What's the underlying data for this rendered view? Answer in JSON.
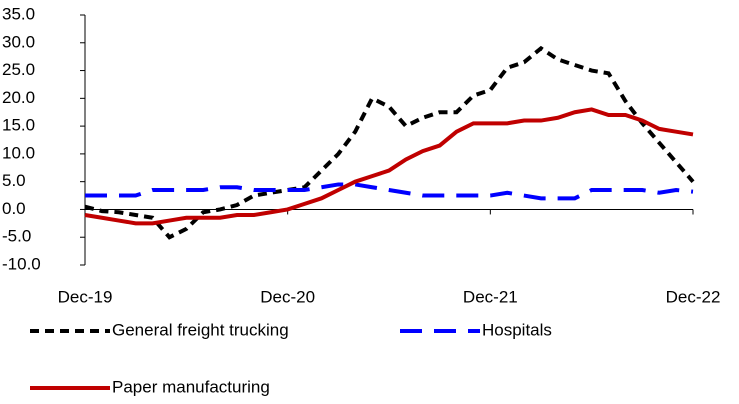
{
  "chart_data": {
    "type": "line",
    "categories": [
      "Dec-19",
      null,
      null,
      null,
      null,
      null,
      null,
      null,
      null,
      null,
      null,
      null,
      "Dec-20",
      null,
      null,
      null,
      null,
      null,
      null,
      null,
      null,
      null,
      null,
      null,
      "Dec-21",
      null,
      null,
      null,
      null,
      null,
      null,
      null,
      null,
      null,
      null,
      null,
      "Dec-22"
    ],
    "series": [
      {
        "name": "General freight trucking",
        "color": "#000000",
        "style": "dashed",
        "values": [
          0.5,
          -0.3,
          -0.5,
          -1,
          -1.5,
          -5,
          -3.5,
          -0.5,
          0,
          0.8,
          2.5,
          3,
          3.5,
          4,
          7,
          10,
          14,
          20,
          18.5,
          15,
          16.5,
          17.5,
          17.5,
          20.5,
          21.5,
          25.5,
          26.5,
          29,
          27,
          26,
          25,
          24.5,
          19.5,
          15.5,
          12,
          8.5,
          5
        ]
      },
      {
        "name": "Hospitals",
        "color": "#0000ff",
        "style": "long-dashed",
        "values": [
          2.5,
          2.5,
          2.5,
          2.5,
          3.5,
          3.5,
          3.5,
          3.5,
          4,
          4,
          3.5,
          3.5,
          3.5,
          3.5,
          4,
          4.5,
          4.5,
          4,
          3.5,
          3,
          2.5,
          2.5,
          2.5,
          2.5,
          2.5,
          3,
          2.5,
          2,
          2,
          2,
          3.5,
          3.5,
          3.5,
          3.5,
          3,
          3.5,
          3.2
        ]
      },
      {
        "name": "Paper manufacturing",
        "color": "#c00000",
        "style": "solid",
        "values": [
          -1,
          -1.5,
          -2,
          -2.5,
          -2.5,
          -2,
          -1.5,
          -1.5,
          -1.5,
          -1,
          -1,
          -0.5,
          0,
          1,
          2,
          3.5,
          5,
          6,
          7,
          9,
          10.5,
          11.5,
          14,
          15.5,
          15.5,
          15.5,
          16,
          16,
          16.5,
          17.5,
          18,
          17,
          17,
          16,
          14.5,
          14,
          13.5
        ]
      }
    ],
    "ylim": [
      -10,
      35
    ],
    "yticks": [
      {
        "value": -10,
        "label": "-10.0"
      },
      {
        "value": -5,
        "label": "-5.0"
      },
      {
        "value": 0,
        "label": "0.0"
      },
      {
        "value": 5,
        "label": "5.0"
      },
      {
        "value": 10,
        "label": "10.0"
      },
      {
        "value": 15,
        "label": "15.0"
      },
      {
        "value": 20,
        "label": "20.0"
      },
      {
        "value": 25,
        "label": "25.0"
      },
      {
        "value": 30,
        "label": "30.0"
      },
      {
        "value": 35,
        "label": "35.0"
      }
    ],
    "grid": false
  }
}
